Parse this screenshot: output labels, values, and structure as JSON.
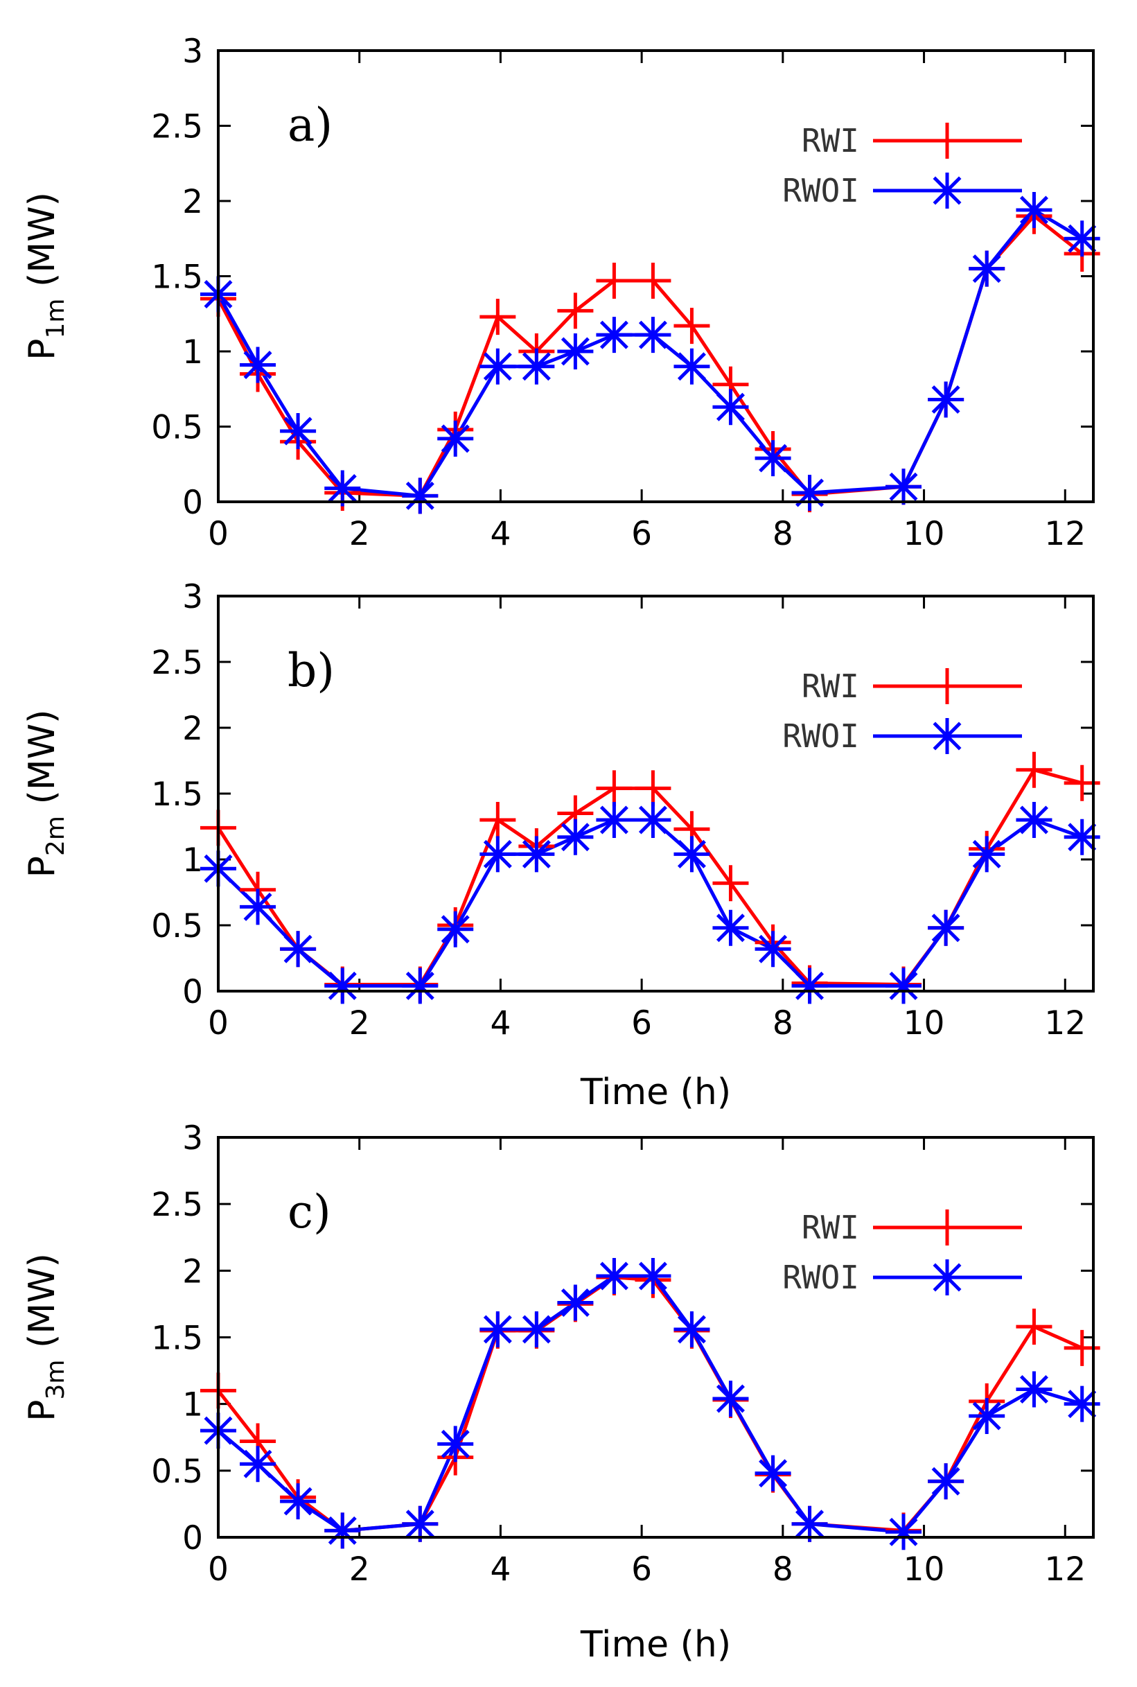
{
  "chart_data": [
    {
      "type": "line",
      "panel_tag": "a)",
      "ylabel": {
        "main": "P",
        "sub": "1m",
        "unit": " (MW)"
      },
      "xlabel": "",
      "xlim": [
        0,
        12.4
      ],
      "ylim": [
        0,
        3
      ],
      "xticks": [
        0,
        2,
        4,
        6,
        8,
        10,
        12
      ],
      "yticks": [
        0,
        0.5,
        1,
        1.5,
        2,
        2.5,
        3
      ],
      "ytick_labels": [
        "0",
        "0.5",
        "1",
        "1.5",
        "2",
        "2.5",
        "3"
      ],
      "legend_position": "top-right",
      "x": [
        0,
        0.56,
        1.13,
        1.76,
        2.86,
        3.36,
        3.96,
        4.51,
        5.06,
        5.61,
        6.16,
        6.71,
        7.26,
        7.86,
        8.38,
        9.71,
        10.31,
        10.89,
        11.56,
        12.24
      ],
      "series": [
        {
          "name": "RWI",
          "color": "#ff0000",
          "marker": "plus",
          "values": [
            1.35,
            0.85,
            0.4,
            0.06,
            0.04,
            0.48,
            1.23,
            1.0,
            1.27,
            1.47,
            1.47,
            1.17,
            0.78,
            0.35,
            0.05,
            0.1,
            0.68,
            1.55,
            1.9,
            1.65
          ]
        },
        {
          "name": "RWOI",
          "color": "#0000ff",
          "marker": "star",
          "values": [
            1.38,
            0.91,
            0.47,
            0.09,
            0.04,
            0.42,
            0.9,
            0.9,
            1.0,
            1.11,
            1.11,
            0.9,
            0.63,
            0.29,
            0.06,
            0.1,
            0.68,
            1.55,
            1.94,
            1.75
          ]
        }
      ]
    },
    {
      "type": "line",
      "panel_tag": "b)",
      "ylabel": {
        "main": "P",
        "sub": "2m",
        "unit": " (MW)"
      },
      "xlabel": "Time (h)",
      "xlim": [
        0,
        12.4
      ],
      "ylim": [
        0,
        3
      ],
      "xticks": [
        0,
        2,
        4,
        6,
        8,
        10,
        12
      ],
      "yticks": [
        0,
        0.5,
        1,
        1.5,
        2,
        2.5,
        3
      ],
      "ytick_labels": [
        "0",
        "0.5",
        "1",
        "1.5",
        "2",
        "2.5",
        "3"
      ],
      "legend_position": "top-right",
      "x": [
        0,
        0.56,
        1.13,
        1.76,
        2.86,
        3.36,
        3.96,
        4.51,
        5.06,
        5.61,
        6.16,
        6.71,
        7.26,
        7.86,
        8.38,
        9.71,
        10.31,
        10.89,
        11.56,
        12.24
      ],
      "series": [
        {
          "name": "RWI",
          "color": "#ff0000",
          "marker": "plus",
          "values": [
            1.24,
            0.77,
            0.32,
            0.05,
            0.05,
            0.5,
            1.3,
            1.1,
            1.35,
            1.54,
            1.54,
            1.23,
            0.82,
            0.37,
            0.06,
            0.05,
            0.48,
            1.08,
            1.68,
            1.58
          ]
        },
        {
          "name": "RWOI",
          "color": "#0000ff",
          "marker": "star",
          "values": [
            0.93,
            0.64,
            0.32,
            0.04,
            0.04,
            0.47,
            1.04,
            1.04,
            1.17,
            1.3,
            1.3,
            1.04,
            0.48,
            0.32,
            0.04,
            0.04,
            0.48,
            1.04,
            1.3,
            1.17
          ]
        }
      ]
    },
    {
      "type": "line",
      "panel_tag": "c)",
      "ylabel": {
        "main": "P",
        "sub": "3m",
        "unit": " (MW)"
      },
      "xlabel": "Time (h)",
      "xlim": [
        0,
        12.4
      ],
      "ylim": [
        0,
        3
      ],
      "xticks": [
        0,
        2,
        4,
        6,
        8,
        10,
        12
      ],
      "yticks": [
        0,
        0.5,
        1,
        1.5,
        2,
        2.5,
        3
      ],
      "ytick_labels": [
        "0",
        "0.5",
        "1",
        "1.5",
        "2",
        "2.5",
        "3"
      ],
      "legend_position": "top-right",
      "x": [
        0,
        0.56,
        1.13,
        1.76,
        2.86,
        3.36,
        3.96,
        4.51,
        5.06,
        5.61,
        6.16,
        6.71,
        7.26,
        7.86,
        8.38,
        9.71,
        10.31,
        10.89,
        11.56,
        12.24
      ],
      "series": [
        {
          "name": "RWI",
          "color": "#ff0000",
          "marker": "plus",
          "values": [
            1.1,
            0.72,
            0.3,
            0.05,
            0.1,
            0.6,
            1.55,
            1.55,
            1.75,
            1.95,
            1.93,
            1.55,
            1.03,
            0.47,
            0.1,
            0.05,
            0.42,
            1.02,
            1.58,
            1.42
          ]
        },
        {
          "name": "RWOI",
          "color": "#0000ff",
          "marker": "star",
          "values": [
            0.8,
            0.55,
            0.27,
            0.05,
            0.1,
            0.7,
            1.56,
            1.56,
            1.76,
            1.96,
            1.96,
            1.56,
            1.04,
            0.48,
            0.1,
            0.04,
            0.42,
            0.91,
            1.11,
            1.0
          ]
        }
      ]
    }
  ]
}
